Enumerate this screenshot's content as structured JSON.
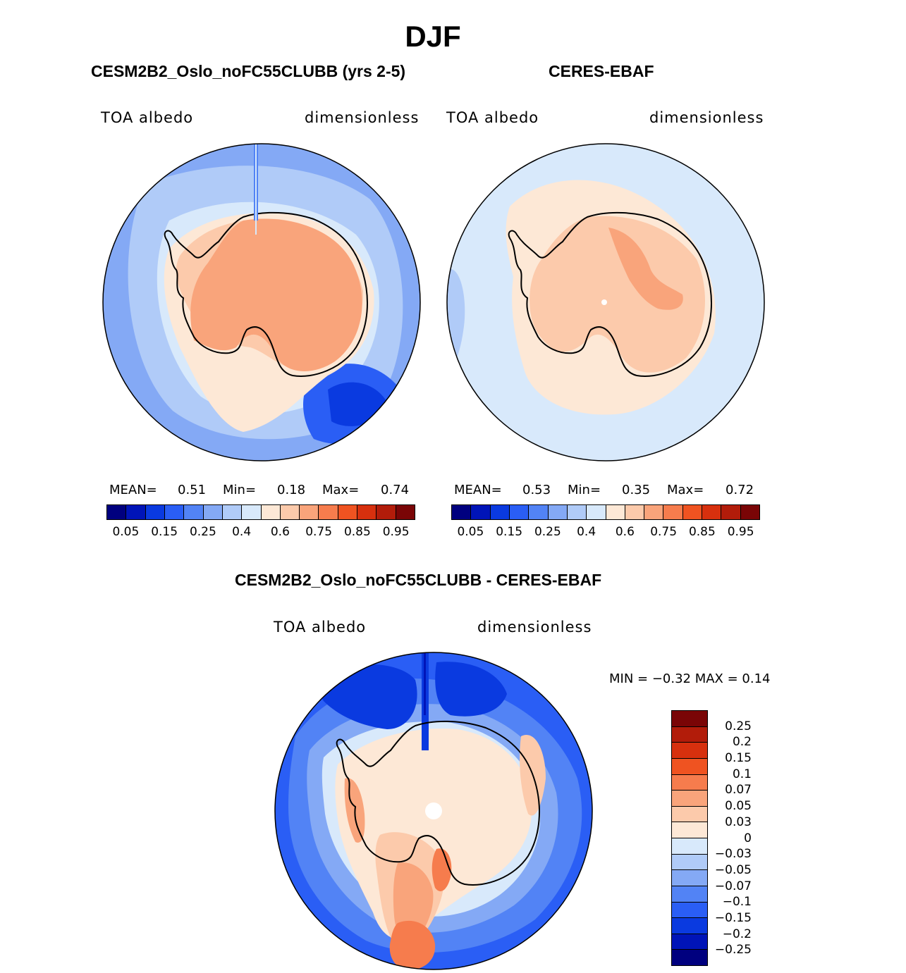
{
  "figure": {
    "title": "DJF"
  },
  "panels": [
    {
      "title": "CESM2B2_Oslo_noFC55CLUBB (yrs 2-5)",
      "left_label": "TOA albedo",
      "right_label": "dimensionless",
      "mean_label": "MEAN=",
      "mean_value": "0.51",
      "min_label": "Min=",
      "min_value": "0.18",
      "max_label": "Max=",
      "max_value": "0.74"
    },
    {
      "title": "CERES-EBAF",
      "left_label": "TOA albedo",
      "right_label": "dimensionless",
      "mean_label": "MEAN=",
      "mean_value": "0.53",
      "min_label": "Min=",
      "min_value": "0.35",
      "max_label": "Max=",
      "max_value": "0.72"
    },
    {
      "title": "CESM2B2_Oslo_noFC55CLUBB - CERES-EBAF",
      "left_label": "TOA albedo",
      "right_label": "dimensionless",
      "minmax_label": "MIN = −0.32 MAX = 0.14",
      "min_value": "−0.32",
      "max_value": "0.14"
    }
  ],
  "colorbar_abs": {
    "colors": [
      "#00007f",
      "#0014b8",
      "#0a3ae0",
      "#2a5ef5",
      "#5283f5",
      "#84a9f5",
      "#b0cbf8",
      "#d8e9fb",
      "#fde8d6",
      "#fccaab",
      "#f9a47b",
      "#f67c4d",
      "#ef5321",
      "#d7300e",
      "#b21c0a",
      "#7a0506"
    ],
    "tick_labels": [
      "0.05",
      "0.15",
      "0.25",
      "0.4",
      "0.6",
      "0.75",
      "0.85",
      "0.95"
    ]
  },
  "colorbar_diff": {
    "colors_top_to_bottom": [
      "#7a0506",
      "#b21c0a",
      "#d7300e",
      "#ef5321",
      "#f67c4d",
      "#f9a47b",
      "#fccaab",
      "#fde8d6",
      "#d8e9fb",
      "#b0cbf8",
      "#84a9f5",
      "#5283f5",
      "#2a5ef5",
      "#0a3ae0",
      "#0014b8",
      "#00007f"
    ],
    "tick_labels": [
      "0.25",
      "0.2",
      "0.15",
      "0.1",
      "0.07",
      "0.05",
      "0.03",
      "0",
      "−0.03",
      "−0.05",
      "−0.07",
      "−0.1",
      "−0.15",
      "−0.2",
      "−0.25"
    ]
  },
  "palette": {
    "ice_orange": "#f9a47b",
    "ice_light": "#fccaab",
    "peach": "#fde8d6",
    "pale_blue": "#d8e9fb",
    "light_blue": "#b0cbf8",
    "mid_blue": "#84a9f5",
    "blue": "#5283f5",
    "deep_blue": "#2a5ef5",
    "navy": "#0a3ae0"
  }
}
